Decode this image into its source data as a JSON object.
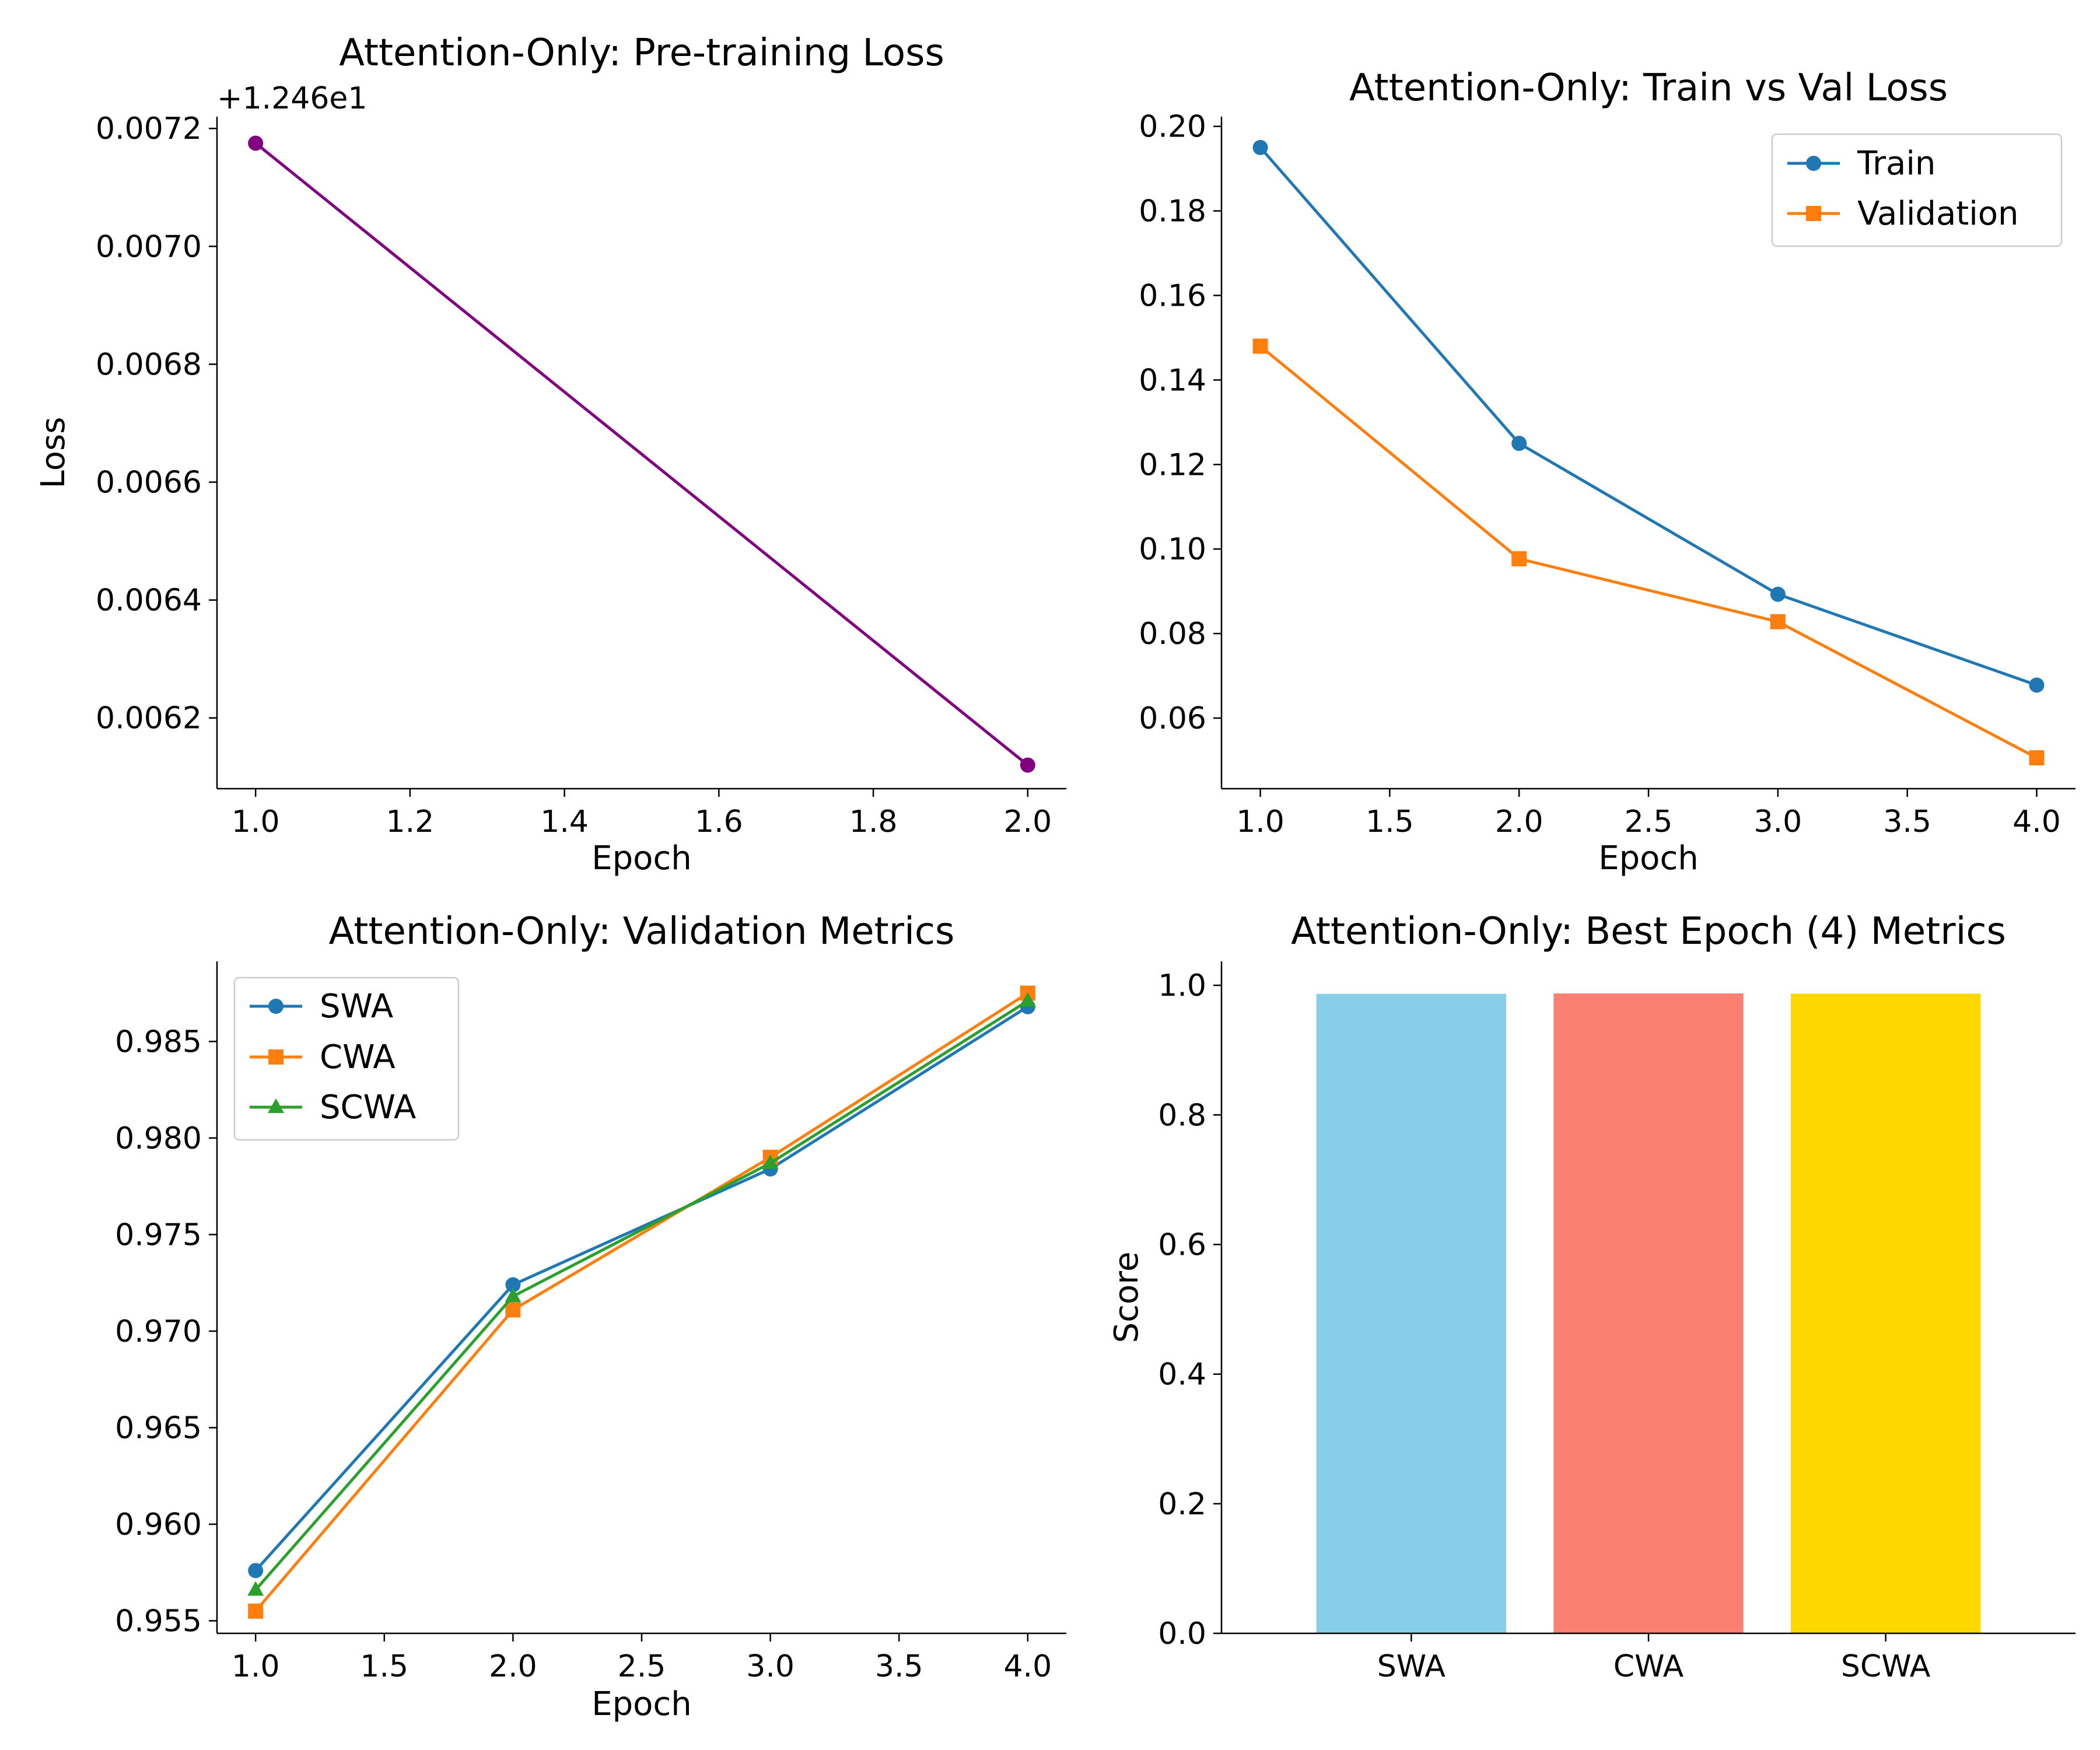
{
  "colors": {
    "pretrain": "#800080",
    "train": "#1f77b4",
    "validation": "#ff7f0e",
    "swa": "#1f77b4",
    "cwa": "#ff7f0e",
    "scwa": "#2ca02c",
    "bar_swa": "#87ceeb",
    "bar_cwa": "#fa8072",
    "bar_scwa": "#ffd700",
    "axis": "#000000"
  },
  "chart_data": [
    {
      "id": "pretrain",
      "type": "line",
      "title": "Attention-Only: Pre-training Loss",
      "xlabel": "Epoch",
      "ylabel": "Loss",
      "offset_text": "+1.246e1",
      "xlim": [
        0.95,
        2.05
      ],
      "ylim": [
        0.00608,
        0.00722
      ],
      "xticks": [
        1.0,
        1.2,
        1.4,
        1.6,
        1.8,
        2.0
      ],
      "xtick_labels": [
        "1.0",
        "1.2",
        "1.4",
        "1.6",
        "1.8",
        "2.0"
      ],
      "yticks": [
        0.0062,
        0.0064,
        0.0066,
        0.0068,
        0.007,
        0.0072
      ],
      "ytick_labels": [
        "0.0062",
        "0.0064",
        "0.0066",
        "0.0068",
        "0.0070",
        "0.0072"
      ],
      "grid": false,
      "series": [
        {
          "key": "pretrain",
          "marker": "circle",
          "x": [
            1.0,
            2.0
          ],
          "y": [
            0.007175,
            0.00612
          ]
        }
      ]
    },
    {
      "id": "trainval",
      "type": "line",
      "title": "Attention-Only: Train vs Val Loss",
      "xlabel": "Epoch",
      "ylabel": "",
      "xlim": [
        0.85,
        4.15
      ],
      "ylim": [
        0.0433,
        0.2023
      ],
      "xticks": [
        1.0,
        1.5,
        2.0,
        2.5,
        3.0,
        3.5,
        4.0
      ],
      "xtick_labels": [
        "1.0",
        "1.5",
        "2.0",
        "2.5",
        "3.0",
        "3.5",
        "4.0"
      ],
      "yticks": [
        0.06,
        0.08,
        0.1,
        0.12,
        0.14,
        0.16,
        0.18,
        0.2
      ],
      "ytick_labels": [
        "0.06",
        "0.08",
        "0.10",
        "0.12",
        "0.14",
        "0.16",
        "0.18",
        "0.20"
      ],
      "grid": false,
      "legend": "top-right",
      "series": [
        {
          "key": "train",
          "name": "Train",
          "marker": "circle",
          "x": [
            1,
            2,
            3,
            4
          ],
          "y": [
            0.195,
            0.125,
            0.0893,
            0.0678
          ]
        },
        {
          "key": "validation",
          "name": "Validation",
          "marker": "square",
          "x": [
            1,
            2,
            3,
            4
          ],
          "y": [
            0.148,
            0.0977,
            0.0828,
            0.0506
          ]
        }
      ]
    },
    {
      "id": "valmetrics",
      "type": "line",
      "title": "Attention-Only: Validation Metrics",
      "xlabel": "Epoch",
      "ylabel": "",
      "xlim": [
        0.85,
        4.15
      ],
      "ylim": [
        0.95435,
        0.98915
      ],
      "xticks": [
        1.0,
        1.5,
        2.0,
        2.5,
        3.0,
        3.5,
        4.0
      ],
      "xtick_labels": [
        "1.0",
        "1.5",
        "2.0",
        "2.5",
        "3.0",
        "3.5",
        "4.0"
      ],
      "yticks": [
        0.955,
        0.96,
        0.965,
        0.97,
        0.975,
        0.98,
        0.985
      ],
      "ytick_labels": [
        "0.955",
        "0.960",
        "0.965",
        "0.970",
        "0.975",
        "0.980",
        "0.985"
      ],
      "grid": false,
      "legend": "top-left",
      "series": [
        {
          "key": "swa",
          "name": "SWA",
          "marker": "circle",
          "x": [
            1,
            2,
            3,
            4
          ],
          "y": [
            0.9576,
            0.9724,
            0.9784,
            0.9868
          ]
        },
        {
          "key": "cwa",
          "name": "CWA",
          "marker": "square",
          "x": [
            1,
            2,
            3,
            4
          ],
          "y": [
            0.9555,
            0.9711,
            0.979,
            0.9875
          ]
        },
        {
          "key": "scwa",
          "name": "SCWA",
          "marker": "triangle",
          "x": [
            1,
            2,
            3,
            4
          ],
          "y": [
            0.9566,
            0.9718,
            0.9787,
            0.9871
          ]
        }
      ]
    },
    {
      "id": "best",
      "type": "bar",
      "title": "Attention-Only: Best Epoch (4) Metrics",
      "xlabel": "",
      "ylabel": "Score",
      "ylim": [
        0,
        1.037
      ],
      "yticks": [
        0.0,
        0.2,
        0.4,
        0.6,
        0.8,
        1.0
      ],
      "ytick_labels": [
        "0.0",
        "0.2",
        "0.4",
        "0.6",
        "0.8",
        "1.0"
      ],
      "grid": false,
      "categories": [
        "SWA",
        "CWA",
        "SCWA"
      ],
      "values": [
        0.9868,
        0.9875,
        0.9871
      ],
      "bar_color_keys": [
        "bar_swa",
        "bar_cwa",
        "bar_scwa"
      ]
    }
  ]
}
